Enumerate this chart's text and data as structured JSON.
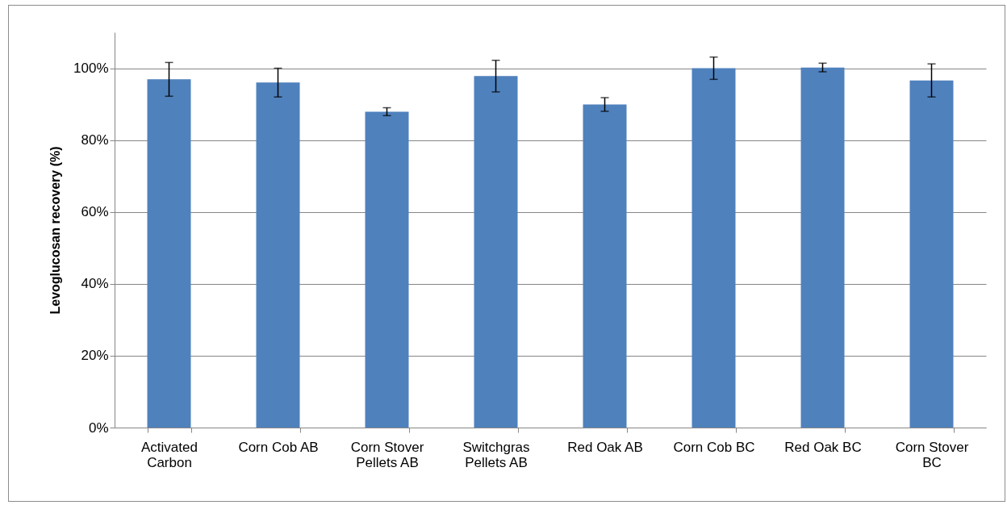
{
  "chart_data": {
    "type": "bar",
    "ylabel": "Levoglucosan recovery  (%)",
    "categories": [
      "Activated Carbon",
      "Corn Cob AB",
      "Corn Stover Pellets AB",
      "Switchgras Pellets AB",
      "Red Oak AB",
      "Corn Cob BC",
      "Red Oak BC",
      "Corn Stover BC"
    ],
    "values": [
      96.9,
      96.0,
      87.9,
      97.8,
      89.9,
      100.0,
      100.2,
      96.6
    ],
    "errors": [
      4.7,
      4.0,
      1.1,
      4.4,
      1.9,
      3.1,
      1.2,
      4.6
    ],
    "color": "#4f81bd",
    "ylim": [
      0,
      110
    ],
    "yticks": [
      {
        "value": 0,
        "label": "0%"
      },
      {
        "value": 20,
        "label": "20%"
      },
      {
        "value": 40,
        "label": "40%"
      },
      {
        "value": 60,
        "label": "60%"
      },
      {
        "value": 80,
        "label": "80%"
      },
      {
        "value": 100,
        "label": "100%"
      }
    ],
    "grid": "y"
  }
}
